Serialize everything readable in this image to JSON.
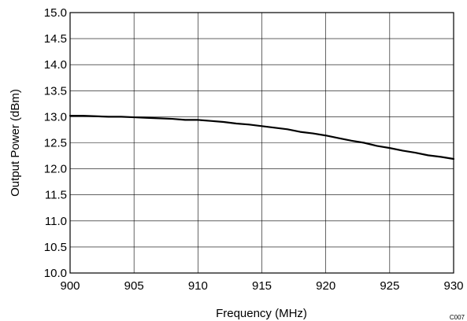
{
  "chart_data": {
    "type": "line",
    "xlabel": "Frequency (MHz)",
    "ylabel": "Output Power (dBm)",
    "xlim": [
      900,
      930
    ],
    "ylim": [
      10.0,
      15.0
    ],
    "x_ticks": [
      "900",
      "905",
      "910",
      "915",
      "920",
      "925",
      "930"
    ],
    "y_ticks": [
      "10.0",
      "10.5",
      "11.0",
      "11.5",
      "12.0",
      "12.5",
      "13.0",
      "13.5",
      "14.0",
      "14.5",
      "15.0"
    ],
    "grid": true,
    "legend": "none",
    "line_color": "#000000",
    "series": [
      {
        "x": [
          900,
          901,
          902,
          903,
          904,
          905,
          906,
          907,
          908,
          909,
          910,
          911,
          912,
          913,
          914,
          915,
          916,
          917,
          918,
          919,
          920,
          921,
          922,
          923,
          924,
          925,
          926,
          927,
          928,
          929,
          930
        ],
        "values": [
          13.02,
          13.02,
          13.01,
          13.0,
          13.0,
          12.99,
          12.98,
          12.97,
          12.96,
          12.94,
          12.94,
          12.92,
          12.9,
          12.87,
          12.85,
          12.82,
          12.79,
          12.76,
          12.71,
          12.68,
          12.64,
          12.59,
          12.54,
          12.5,
          12.44,
          12.4,
          12.35,
          12.31,
          12.26,
          12.23,
          12.19
        ]
      }
    ]
  },
  "figure_code": "C007"
}
